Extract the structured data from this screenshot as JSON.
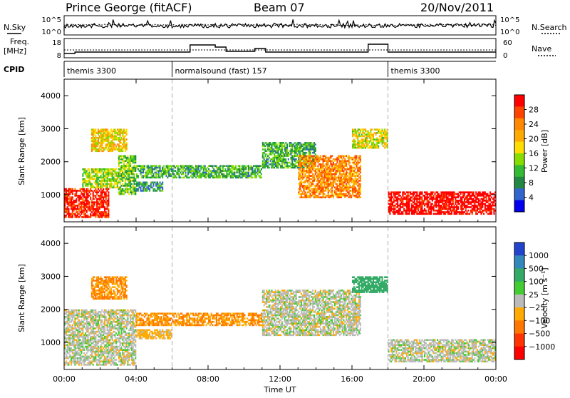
{
  "header": {
    "station": "Prince George (fitACF)",
    "beam": "Beam 07",
    "date": "20/Nov/2011"
  },
  "top_panels": {
    "nsky_label": "N.Sky",
    "nsearch_label": "N.Search",
    "nsky_ticks": [
      "10^5",
      "10^0"
    ],
    "nsearch_ticks": [
      "10^5",
      "10^0"
    ],
    "freq_label_1": "Freq.",
    "freq_label_2": "[MHz]",
    "freq_ticks": [
      "18",
      "8"
    ],
    "nave_label": "Nave",
    "nave_ticks": [
      "60",
      "0"
    ],
    "cpid_label": "CPID",
    "modes": [
      {
        "name": "themis 3300",
        "start_hour": 0,
        "end_hour": 6
      },
      {
        "name": "normalsound (fast) 157",
        "start_hour": 6,
        "end_hour": 18
      },
      {
        "name": "themis 3300",
        "start_hour": 18,
        "end_hour": 24
      }
    ]
  },
  "power_colorbar": {
    "label": "Power [dB]",
    "ticks": [
      "28",
      "24",
      "20",
      "16",
      "12",
      "8",
      "4"
    ],
    "colors": [
      "#ff0000",
      "#ff4400",
      "#ff8800",
      "#ffaa00",
      "#ffdd00",
      "#88dd00",
      "#33bb33",
      "#228844",
      "#3366cc",
      "#0000ee"
    ]
  },
  "velocity_colorbar": {
    "label": "Velocity [m s⁻¹]",
    "ticks": [
      "1000",
      "500",
      "100",
      "25",
      "−25",
      "−100",
      "−500",
      "−1000"
    ],
    "colors": [
      "#2244cc",
      "#3388bb",
      "#33aa66",
      "#44cc33",
      "#bbbbbb",
      "#ffaa00",
      "#ff7700",
      "#ff3300",
      "#ff0000"
    ]
  },
  "x_axis": {
    "label": "Time UT",
    "ticks": [
      "00:00",
      "04:00",
      "08:00",
      "12:00",
      "16:00",
      "20:00",
      "00:00"
    ]
  },
  "range_axis": {
    "label": "Slant Range [km]",
    "ticks": [
      "4000",
      "3000",
      "2000",
      "1000"
    ]
  },
  "chart_data": [
    {
      "type": "heatmap",
      "title": "",
      "xlabel": "Time UT",
      "ylabel": "Slant Range [km]",
      "xlim": [
        0,
        24
      ],
      "ylim": [
        180,
        4500
      ],
      "colorbar": "Power [dB]",
      "colorbar_range": [
        0,
        30
      ],
      "regions": [
        {
          "t0": 0.0,
          "t1": 2.5,
          "r0": 300,
          "r1": 1200,
          "level": 28
        },
        {
          "t0": 1.0,
          "t1": 3.0,
          "r0": 1200,
          "r1": 1800,
          "level": 14
        },
        {
          "t0": 1.5,
          "t1": 3.5,
          "r0": 2300,
          "r1": 3000,
          "level": 18
        },
        {
          "t0": 3.0,
          "t1": 4.0,
          "r0": 1000,
          "r1": 2200,
          "level": 12
        },
        {
          "t0": 4.0,
          "t1": 11.0,
          "r0": 1500,
          "r1": 1900,
          "level": 10
        },
        {
          "t0": 4.0,
          "t1": 5.5,
          "r0": 1100,
          "r1": 1400,
          "level": 8
        },
        {
          "t0": 11.0,
          "t1": 14.0,
          "r0": 1800,
          "r1": 2600,
          "level": 10
        },
        {
          "t0": 13.0,
          "t1": 16.5,
          "r0": 900,
          "r1": 2200,
          "level": 22
        },
        {
          "t0": 16.0,
          "t1": 18.0,
          "r0": 2400,
          "r1": 3000,
          "level": 16
        },
        {
          "t0": 18.0,
          "t1": 24.0,
          "r0": 400,
          "r1": 1100,
          "level": 30
        }
      ]
    },
    {
      "type": "heatmap",
      "title": "",
      "xlabel": "Time UT",
      "ylabel": "Slant Range [km]",
      "xlim": [
        0,
        24
      ],
      "ylim": [
        180,
        4500
      ],
      "colorbar": "Velocity [m s⁻¹]",
      "colorbar_range": [
        -1000,
        1000
      ],
      "regions": [
        {
          "t0": 0.0,
          "t1": 4.0,
          "r0": 300,
          "r1": 2000,
          "velocity": 0
        },
        {
          "t0": 1.5,
          "t1": 3.5,
          "r0": 2300,
          "r1": 3000,
          "velocity": -100
        },
        {
          "t0": 4.0,
          "t1": 11.0,
          "r0": 1500,
          "r1": 1900,
          "velocity": -100
        },
        {
          "t0": 4.0,
          "t1": 6.0,
          "r0": 1100,
          "r1": 1400,
          "velocity": -50
        },
        {
          "t0": 11.0,
          "t1": 16.5,
          "r0": 1200,
          "r1": 2600,
          "velocity": 0
        },
        {
          "t0": 16.0,
          "t1": 18.0,
          "r0": 2500,
          "r1": 3000,
          "velocity": 100
        },
        {
          "t0": 18.0,
          "t1": 24.0,
          "r0": 400,
          "r1": 1100,
          "velocity": 0
        }
      ]
    }
  ]
}
